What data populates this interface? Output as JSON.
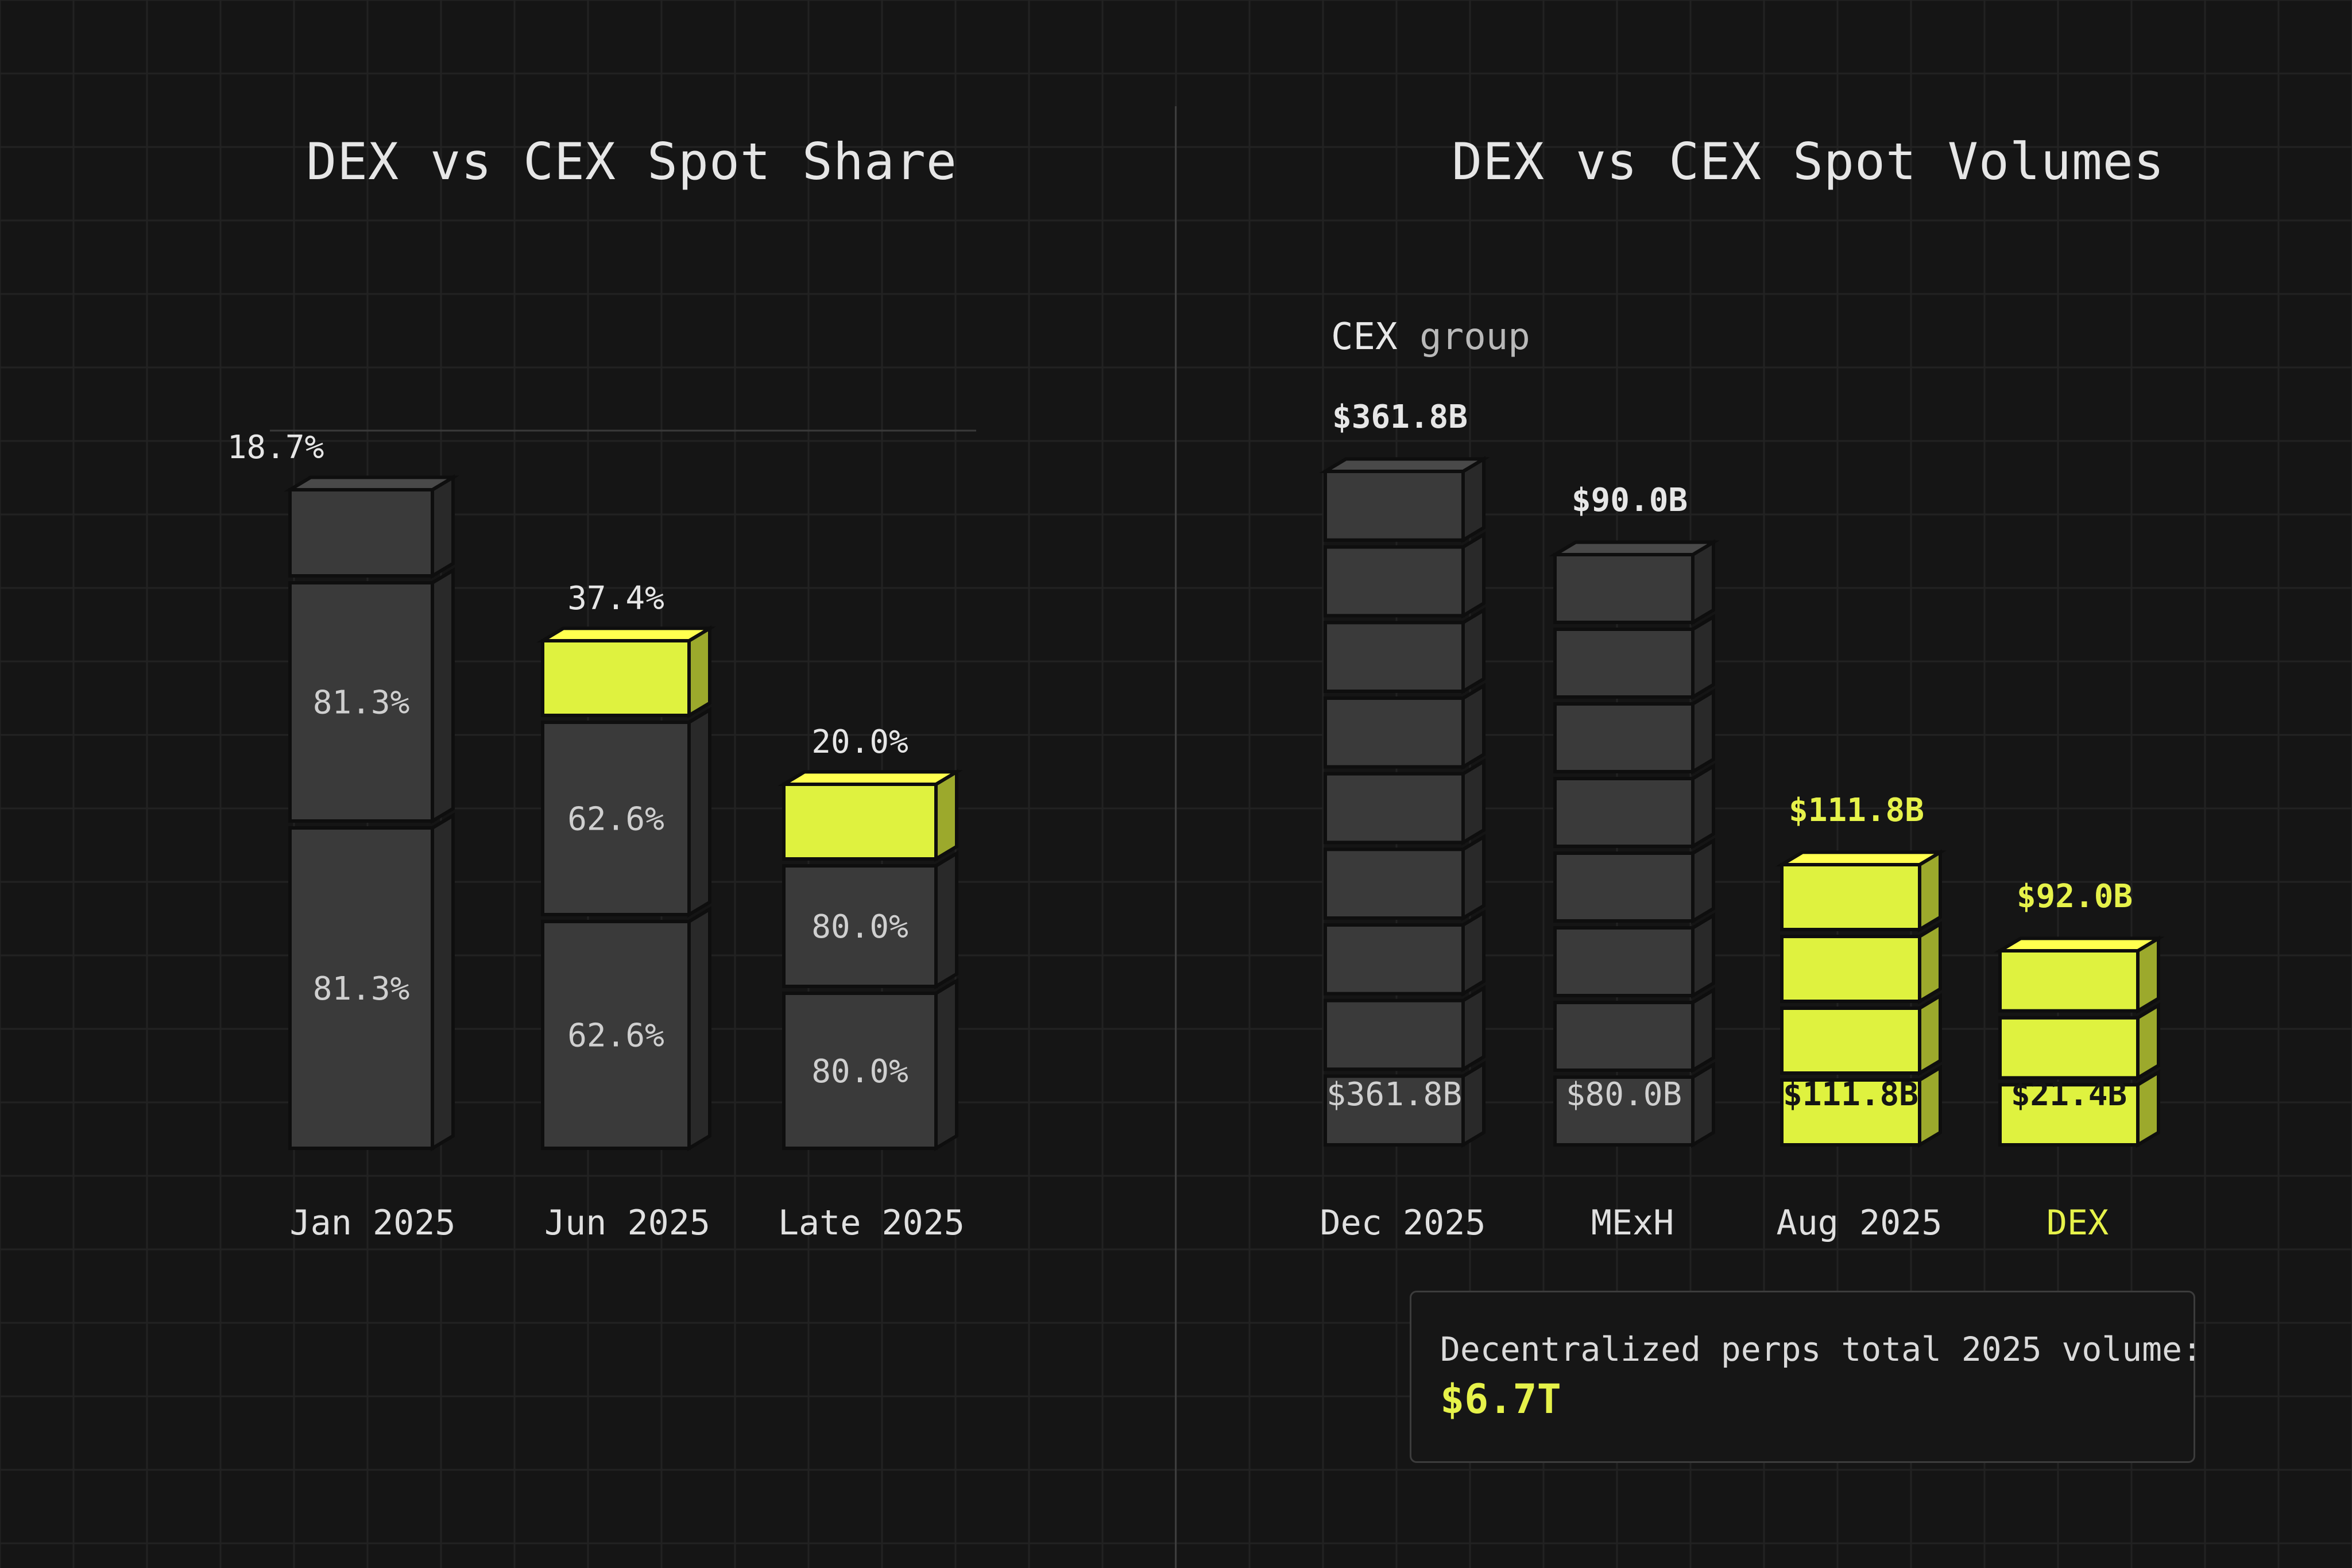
{
  "colors": {
    "background": "#151515",
    "cex_bar": "#3a3a3a",
    "dex_bar": "#dff23f",
    "text": "#e6e6e6",
    "accent": "#e6f24a"
  },
  "left": {
    "title": "DEX vs CEX Spot Share"
  },
  "right": {
    "title": "DEX vs CEX Spot Volumes",
    "group_label": "CEX",
    "group_label_suffix": "group"
  },
  "note": {
    "text": "Decentralized perps total 2025 volume:",
    "value": "$6.7T"
  },
  "chart_data": [
    {
      "type": "bar",
      "title": "DEX vs CEX Spot Share",
      "categories": [
        "Jan 2025",
        "Jun 2025",
        "Late 2025"
      ],
      "series": [
        {
          "name": "",
          "values": [
            81.3,
            62.6,
            80.0
          ],
          "labels": [
            "81.3%",
            "62.6%",
            "80.0%"
          ]
        },
        {
          "name": "",
          "values": [
            81.3,
            62.6,
            80.0
          ],
          "labels": [
            "81.3%",
            "62.6%",
            "80.0%"
          ]
        },
        {
          "name": "",
          "values": [
            18.7,
            37.4,
            20.0
          ],
          "labels": [
            "18.7%",
            "37.4%",
            "20.0%"
          ]
        }
      ],
      "top_segment_highlighted": [
        false,
        true,
        true
      ],
      "stacked": true,
      "grid": true
    },
    {
      "type": "bar",
      "title": "DEX vs CEX Spot Volumes",
      "categories": [
        "Dec 2025",
        "MExH",
        "Aug 2025",
        "DEX"
      ],
      "category_groups": [
        "CEX",
        "CEX",
        "DEX",
        "DEX"
      ],
      "values": [
        361.8,
        90.0,
        111.8,
        92.0
      ],
      "top_labels": [
        "$361.8B",
        "$90.0B",
        "$111.8B",
        "$92.0B"
      ],
      "base_labels": [
        "$361.8B",
        "$80.0B",
        "$111.8B",
        "$21.4B"
      ],
      "highlighted": [
        false,
        false,
        true,
        true
      ],
      "grid": true
    }
  ]
}
